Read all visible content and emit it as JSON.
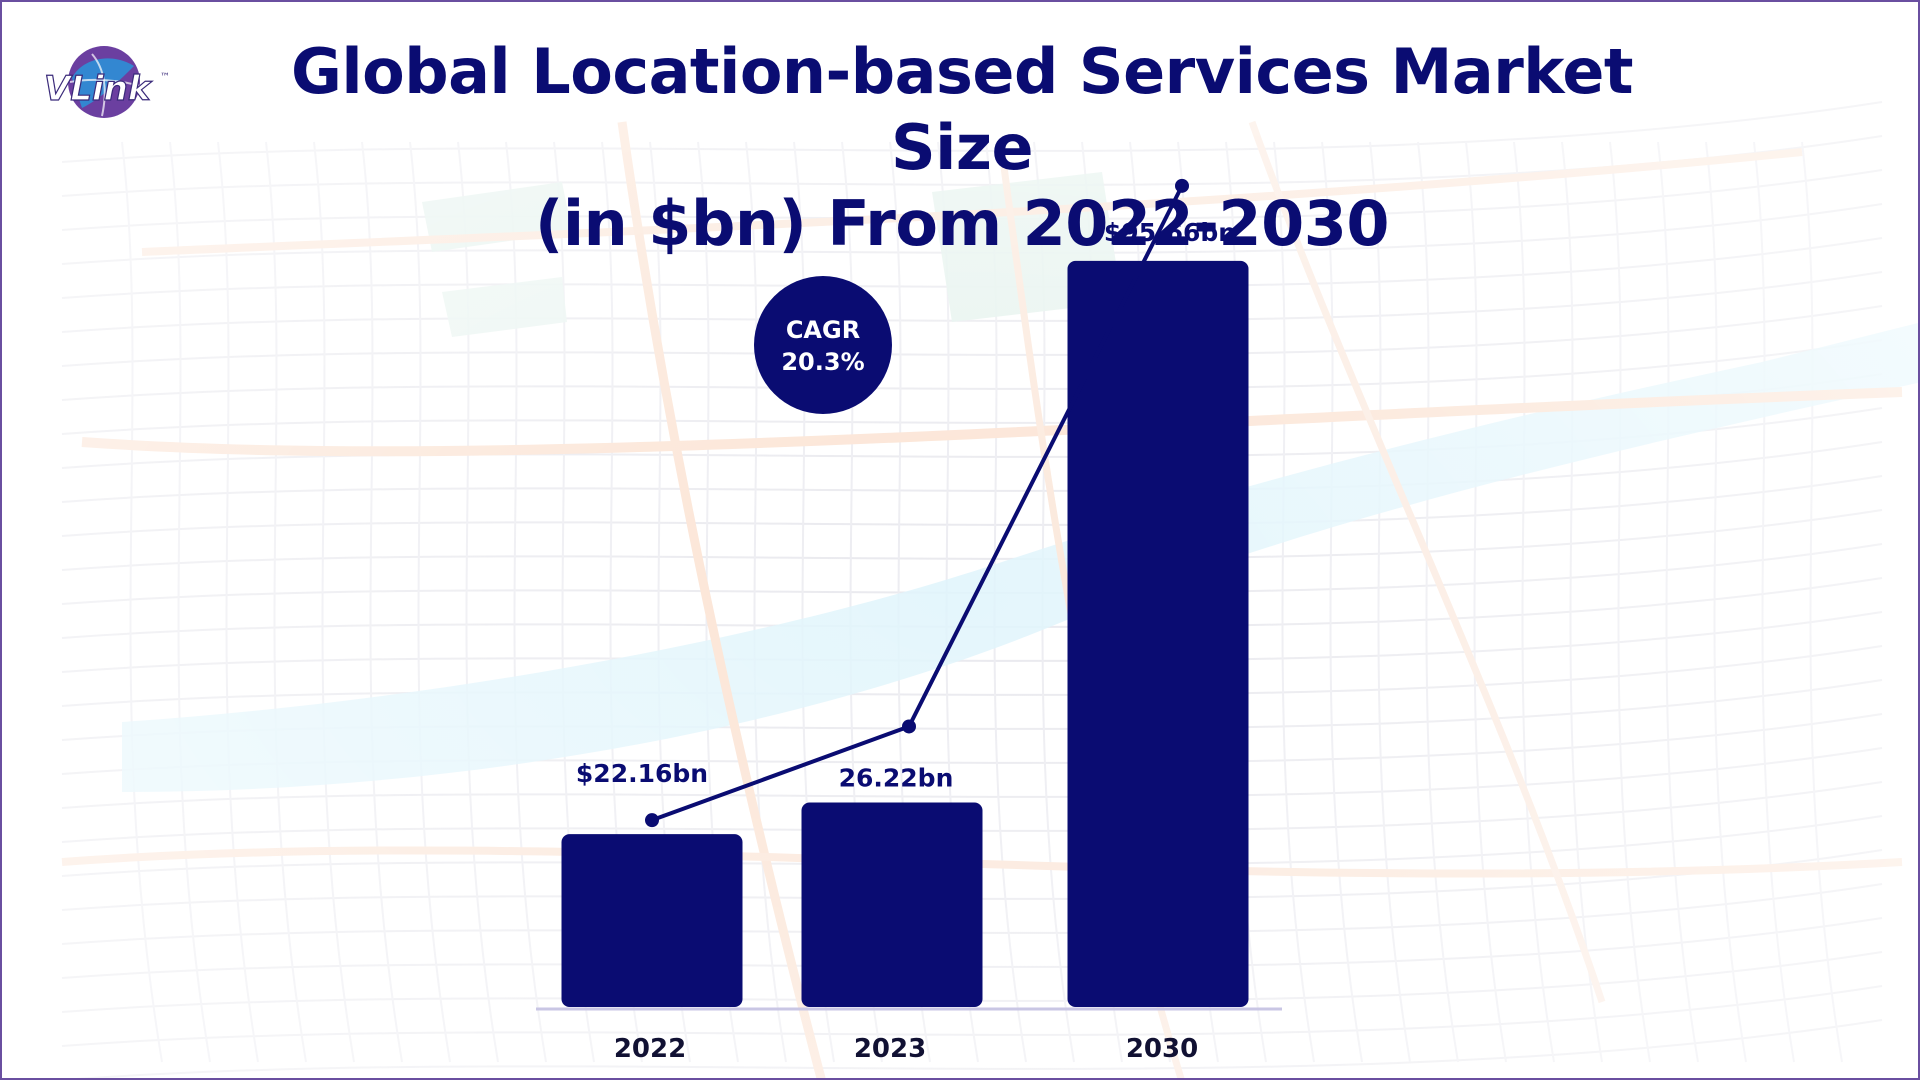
{
  "title_line1": "Global Location-based Services Market Size",
  "title_line2": "(in $bn) From 2022-2030",
  "logo": {
    "text": "VLink",
    "trademark": "™",
    "icon": "globe-icon"
  },
  "cagr": {
    "label": "CAGR",
    "value": "20.3%"
  },
  "colors": {
    "bar": "#0a0c72",
    "title": "#0a0c72",
    "axis": "#c9c6e4",
    "logo_purple": "#5b2a86",
    "logo_blue": "#2e8fd6",
    "background_map": "map-pattern"
  },
  "chart_data": {
    "type": "bar",
    "title": "Global Location-based Services Market Size (in $bn) From 2022-2030",
    "categories": [
      "2022",
      "2023",
      "2030"
    ],
    "values": [
      22.16,
      26.22,
      95.66
    ],
    "data_labels": [
      "$22.16bn",
      "26.22bn",
      "$95.66bn"
    ],
    "unit": "$bn",
    "xlabel": "",
    "ylabel": "",
    "ylim": [
      0,
      100
    ],
    "grid": false,
    "legend": "none",
    "trend_line": true
  }
}
